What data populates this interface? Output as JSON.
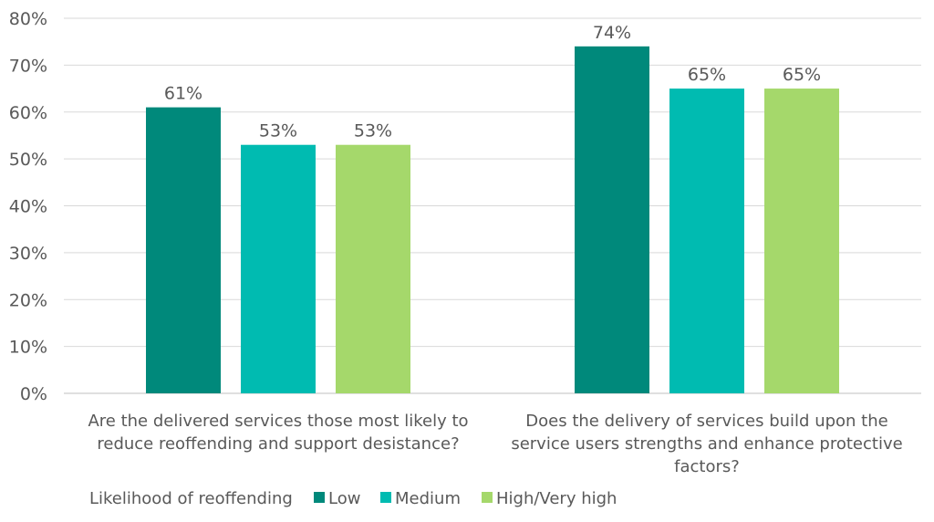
{
  "chart_data": {
    "type": "bar",
    "categories": [
      [
        "Are the delivered services those most likely to",
        "reduce reoffending and support desistance?"
      ],
      [
        "Does the delivery of services build upon the",
        "service users strengths and enhance protective",
        "factors?"
      ]
    ],
    "series": [
      {
        "name": "Low",
        "values": [
          61,
          74
        ],
        "labels": [
          "61%",
          "74%"
        ],
        "color": "#00897b"
      },
      {
        "name": "Medium",
        "values": [
          53,
          65
        ],
        "labels": [
          "53%",
          "65%"
        ],
        "color": "#00bbb1"
      },
      {
        "name": "High/Very high",
        "values": [
          53,
          65
        ],
        "labels": [
          "53%",
          "65%"
        ],
        "color": "#a5d86b"
      }
    ],
    "yticks": [
      "0%",
      "10%",
      "20%",
      "30%",
      "40%",
      "50%",
      "60%",
      "70%",
      "80%"
    ],
    "ylim": [
      0,
      80
    ],
    "grid": true,
    "legend_title": "Likelihood of reoffending",
    "legend_position": "bottom",
    "xlabel": "",
    "ylabel": "",
    "title": ""
  }
}
